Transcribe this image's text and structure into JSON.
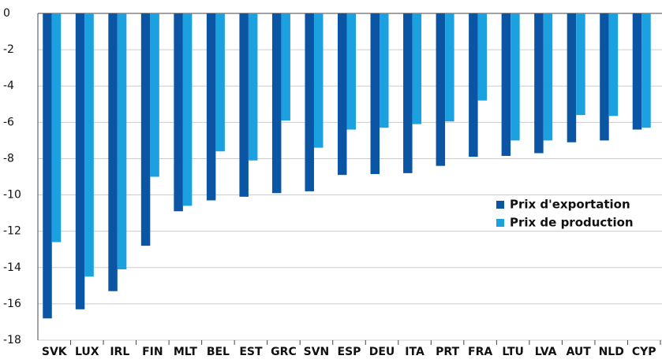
{
  "chart_data": {
    "type": "bar",
    "categories": [
      "SVK",
      "LUX",
      "IRL",
      "FIN",
      "MLT",
      "BEL",
      "EST",
      "GRC",
      "SVN",
      "ESP",
      "DEU",
      "ITA",
      "PRT",
      "FRA",
      "LTU",
      "LVA",
      "AUT",
      "NLD",
      "CYP"
    ],
    "series": [
      {
        "name": "Prix d'exportation",
        "color": "#0b56a4",
        "values": [
          -16.8,
          -16.3,
          -15.3,
          -12.8,
          -10.9,
          -10.3,
          -10.1,
          -9.9,
          -9.8,
          -8.9,
          -8.85,
          -8.8,
          -8.4,
          -7.9,
          -7.85,
          -7.7,
          -7.1,
          -7.0,
          -6.4
        ]
      },
      {
        "name": "Prix de production",
        "color": "#1ba1df",
        "values": [
          -12.6,
          -14.5,
          -14.1,
          -9.0,
          -10.6,
          -7.6,
          -8.1,
          -5.9,
          -7.4,
          -6.4,
          -6.3,
          -6.1,
          -5.95,
          -4.8,
          -7.0,
          -7.0,
          -5.6,
          -5.65,
          -6.3
        ]
      }
    ],
    "ylim": [
      -18,
      0
    ],
    "yticks": [
      0,
      -2,
      -4,
      -6,
      -8,
      -10,
      -12,
      -14,
      -16,
      -18
    ],
    "grid": true,
    "legend": "right"
  }
}
